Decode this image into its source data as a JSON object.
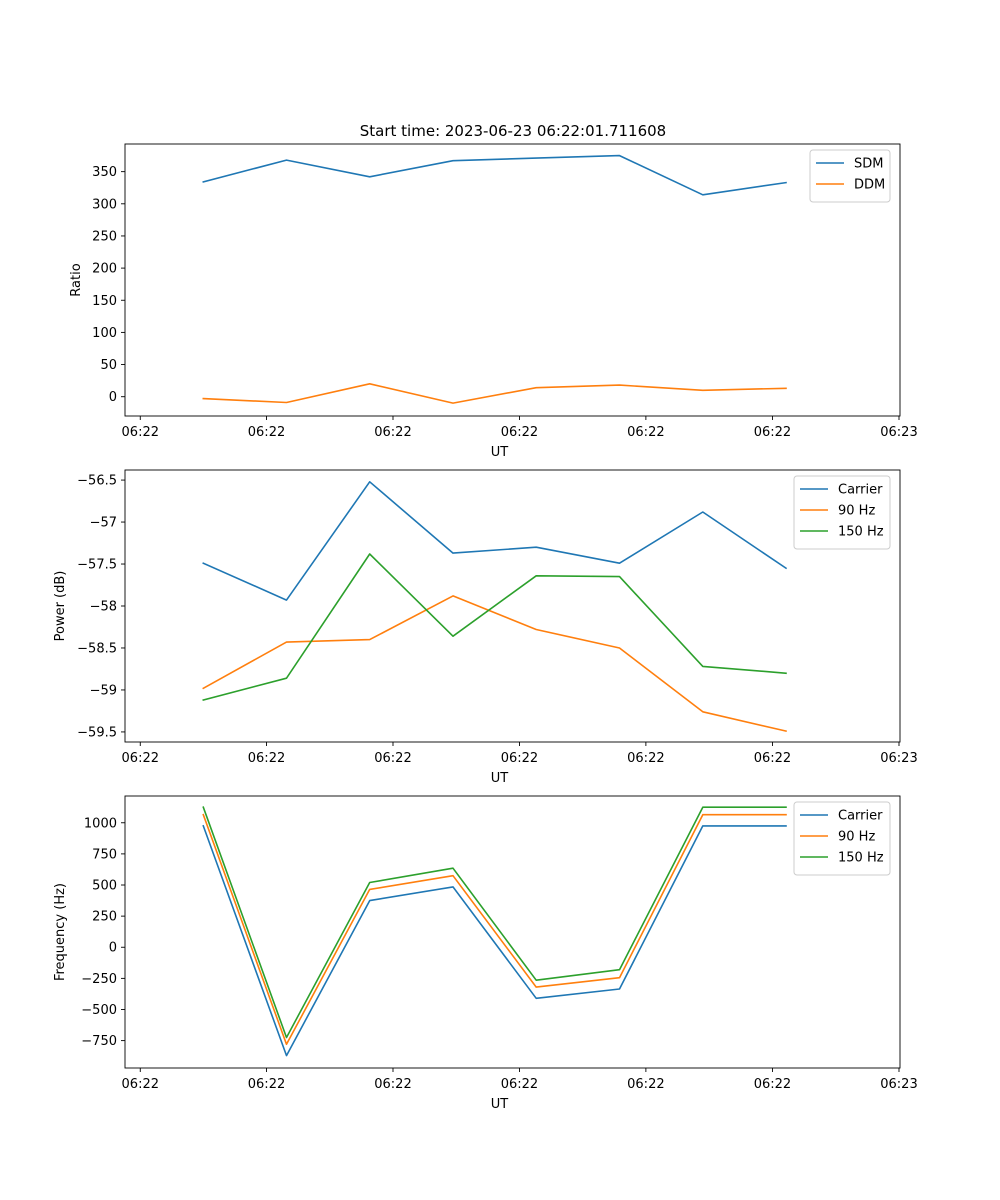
{
  "title": "Start time: 2023-06-23 06:22:01.711608",
  "colors": {
    "blue": "#1f77b4",
    "orange": "#ff7f0e",
    "green": "#2ca02c"
  },
  "chart_data": [
    {
      "type": "line",
      "title": "Start time: 2023-06-23 06:22:01.711608",
      "xlabel": "UT",
      "ylabel": "Ratio",
      "xtick_labels": [
        "06:22",
        "06:22",
        "06:22",
        "06:22",
        "06:22",
        "06:22",
        "06:23"
      ],
      "ylim": [
        -30,
        393
      ],
      "yticks": [
        0,
        50,
        100,
        150,
        200,
        250,
        300,
        350
      ],
      "legend": "upper right",
      "grid": false,
      "series": [
        {
          "name": "SDM",
          "color": "#1f77b4",
          "values": [
            334,
            368,
            342,
            367,
            371,
            375,
            314,
            333
          ]
        },
        {
          "name": "DDM",
          "color": "#ff7f0e",
          "values": [
            -3,
            -9,
            20,
            -10,
            14,
            18,
            10,
            13
          ]
        }
      ]
    },
    {
      "type": "line",
      "xlabel": "UT",
      "ylabel": "Power (dB)",
      "xtick_labels": [
        "06:22",
        "06:22",
        "06:22",
        "06:22",
        "06:22",
        "06:22",
        "06:23"
      ],
      "ylim": [
        -59.62,
        -56.38
      ],
      "yticks": [
        -59.5,
        -59.0,
        -58.5,
        -58.0,
        -57.5,
        -57.0,
        -56.5
      ],
      "legend": "upper right",
      "grid": false,
      "series": [
        {
          "name": "Carrier",
          "color": "#1f77b4",
          "values": [
            -57.49,
            -57.93,
            -56.52,
            -57.37,
            -57.3,
            -57.49,
            -56.88,
            -57.55
          ]
        },
        {
          "name": "90 Hz",
          "color": "#ff7f0e",
          "values": [
            -58.98,
            -58.43,
            -58.4,
            -57.88,
            -58.28,
            -58.5,
            -59.26,
            -59.49
          ]
        },
        {
          "name": "150 Hz",
          "color": "#2ca02c",
          "values": [
            -59.12,
            -58.86,
            -57.38,
            -58.36,
            -57.64,
            -57.65,
            -58.72,
            -58.8
          ]
        }
      ]
    },
    {
      "type": "line",
      "xlabel": "UT",
      "ylabel": "Frequency (Hz)",
      "xtick_labels": [
        "06:22",
        "06:22",
        "06:22",
        "06:22",
        "06:22",
        "06:22",
        "06:23"
      ],
      "ylim": [
        -970,
        1215
      ],
      "yticks": [
        -750,
        -500,
        -250,
        0,
        250,
        500,
        750,
        1000
      ],
      "legend": "upper right",
      "grid": false,
      "series": [
        {
          "name": "Carrier",
          "color": "#1f77b4",
          "values": [
            975,
            -870,
            375,
            485,
            -410,
            -335,
            975,
            975
          ]
        },
        {
          "name": "90 Hz",
          "color": "#ff7f0e",
          "values": [
            1065,
            -780,
            465,
            575,
            -320,
            -245,
            1065,
            1065
          ]
        },
        {
          "name": "150 Hz",
          "color": "#2ca02c",
          "values": [
            1125,
            -725,
            520,
            635,
            -265,
            -180,
            1125,
            1125
          ]
        }
      ]
    }
  ]
}
